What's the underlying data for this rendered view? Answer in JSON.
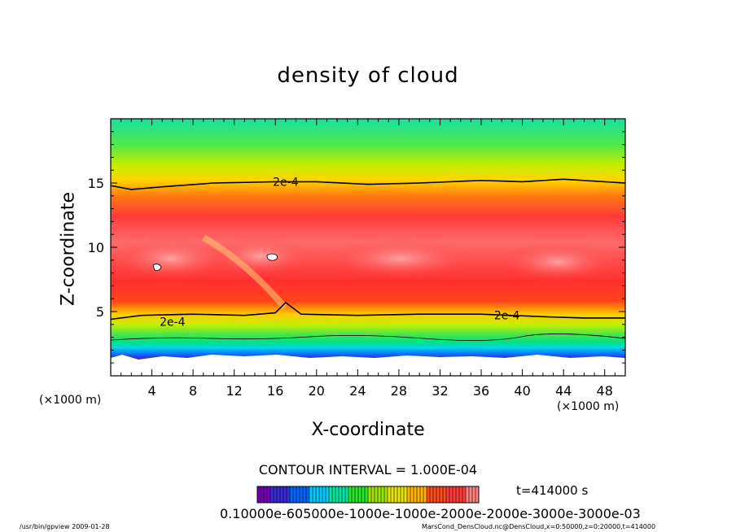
{
  "chart_data": {
    "type": "heatmap",
    "title": "density of cloud",
    "xlabel": "X-coordinate",
    "ylabel": "Z-coordinate",
    "xunit": "(×1000 m)",
    "yunit": "(×1000 m)",
    "xlim": [
      0,
      50
    ],
    "ylim": [
      0,
      20
    ],
    "xticks": [
      4,
      8,
      12,
      16,
      20,
      24,
      28,
      32,
      36,
      40,
      44,
      48
    ],
    "yticks": [
      5,
      10,
      15
    ],
    "contour_interval_text": "CONTOUR INTERVAL = 1.000E-04",
    "time_label": "t=414000 s",
    "contour_labels": [
      {
        "text": "2e-4",
        "x": 17.0,
        "z": 15.1
      },
      {
        "text": "2e-4",
        "x": 38.5,
        "z": 4.7
      },
      {
        "text": "2e-4",
        "x": 6.0,
        "z": 4.2
      }
    ],
    "contour_levels_upper": [
      [
        0,
        14.8
      ],
      [
        2,
        14.5
      ],
      [
        5,
        14.7
      ],
      [
        10,
        15.0
      ],
      [
        16,
        15.1
      ],
      [
        20,
        15.1
      ],
      [
        25,
        14.9
      ],
      [
        30,
        15.0
      ],
      [
        36,
        15.2
      ],
      [
        40,
        15.1
      ],
      [
        44,
        15.3
      ],
      [
        48,
        15.1
      ],
      [
        50,
        15.0
      ]
    ],
    "contour_levels_lower": [
      [
        0,
        4.4
      ],
      [
        3,
        4.7
      ],
      [
        8,
        4.8
      ],
      [
        13,
        4.7
      ],
      [
        16,
        4.9
      ],
      [
        17.0,
        5.7
      ],
      [
        18.5,
        4.8
      ],
      [
        24,
        4.7
      ],
      [
        30,
        4.8
      ],
      [
        36,
        4.8
      ],
      [
        42,
        4.6
      ],
      [
        46,
        4.5
      ],
      [
        50,
        4.5
      ]
    ],
    "colorbar_label": "0.10000e-605000e-1000e-1000e-2000e-2000e-3000e-3000e-03",
    "colorscale": [
      "#7400b8",
      "#3a2bd6",
      "#0066ff",
      "#00c8ff",
      "#00e6a0",
      "#29e629",
      "#9ce600",
      "#e8e600",
      "#ffb300",
      "#ff4a1a",
      "#ff3a3a",
      "#ff8080"
    ]
  },
  "footer": {
    "left": "/usr/bin/gpview  2009-01-28",
    "right": "MarsCond_DensCloud.nc@DensCloud,x=0:50000,z=0:20000,t=414000"
  }
}
